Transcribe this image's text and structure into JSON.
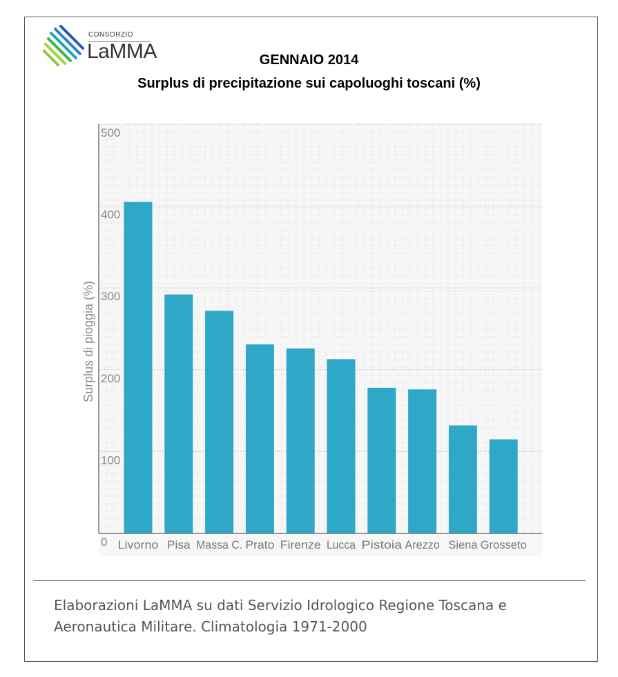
{
  "logo": {
    "top_text": "CONSORZIO",
    "main_text": "LaMMA"
  },
  "header": {
    "title_line1": "GENNAIO 2014",
    "title_line2": "Surplus di precipitazione sui capoluoghi toscani (%)"
  },
  "chart_data": {
    "type": "bar",
    "categories": [
      "Livorno",
      "Pisa",
      "Massa C.",
      "Prato",
      "Firenze",
      "Lucca",
      "Pistoia",
      "Arezzo",
      "Siena",
      "Grosseto"
    ],
    "values": [
      405,
      292,
      272,
      231,
      226,
      213,
      178,
      176,
      132,
      115
    ],
    "ylabel": "Surplus di pioggia (%)",
    "ylim": [
      0,
      500
    ],
    "yticks": [
      0,
      100,
      200,
      300,
      400,
      500
    ],
    "grid": true,
    "bar_color": "#2ea8c6"
  },
  "footer": {
    "line1": "Elaborazioni LaMMA su dati Servizio Idrologico Regione Toscana e",
    "line2": "Aeronautica Militare. Climatologia 1971-2000"
  }
}
